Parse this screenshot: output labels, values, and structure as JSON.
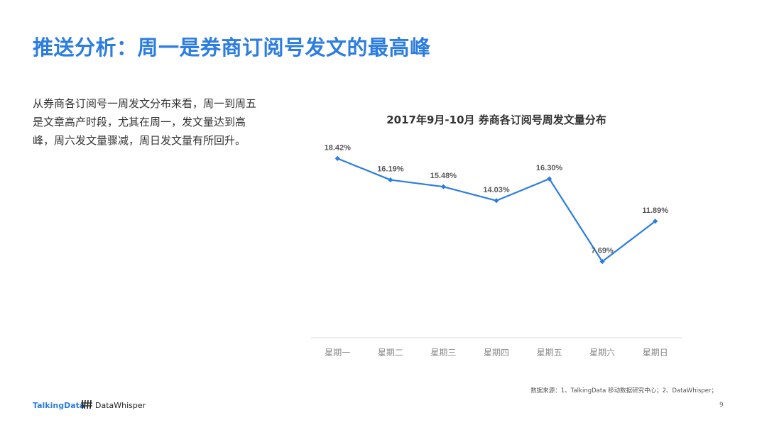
{
  "slide": {
    "title": "推送分析：周一是券商订阅号发文的最高峰",
    "description": "从券商各订阅号一周发文分布来看，周一到周五是文章高产时段，尤其在周一，发文量达到高峰，周六发文量骤减，周日发文量有所回升。",
    "source": "数据来源：1、TalkingData 移动数据研究中心；2、DataWhisper；",
    "page_number": "9",
    "logo_talkingdata": "TalkingData",
    "logo_datawhisper": "DataWhisper"
  },
  "chart_data": {
    "type": "line",
    "title": "2017年9月-10月 券商各订阅号周发文量分布",
    "categories": [
      "星期一",
      "星期二",
      "星期三",
      "星期四",
      "星期五",
      "星期六",
      "星期日"
    ],
    "values": [
      18.42,
      16.19,
      15.48,
      14.03,
      16.3,
      7.69,
      11.89
    ],
    "labels": [
      "18.42%",
      "16.19%",
      "15.48%",
      "14.03%",
      "16.30%",
      "7.69%",
      "11.89%"
    ],
    "unit": "%",
    "ylim": [
      0,
      20
    ],
    "grid": false,
    "legend": "none",
    "line_color": "#2b7de0",
    "label_color": "#595959",
    "axis_color": "#d9d9d9"
  }
}
